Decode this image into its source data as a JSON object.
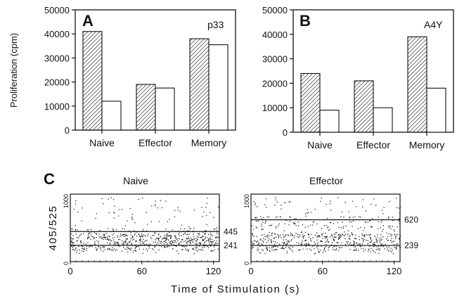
{
  "chart_data": [
    {
      "panel": "A",
      "type": "bar",
      "tag": "p33",
      "ylabel": "Proliferation (cpm)",
      "ylim": [
        0,
        50000
      ],
      "yticks": [
        "0",
        "10000",
        "20000",
        "30000",
        "40000",
        "50000"
      ],
      "categories": [
        "Naive",
        "Effector",
        "Memory"
      ],
      "series": [
        {
          "pattern": "hatched",
          "values": [
            41000,
            19000,
            38000
          ]
        },
        {
          "pattern": "open",
          "values": [
            12000,
            17500,
            35500
          ]
        }
      ]
    },
    {
      "panel": "B",
      "type": "bar",
      "tag": "A4Y",
      "ylim": [
        0,
        50000
      ],
      "yticks": [
        "0",
        "10000",
        "20000",
        "30000",
        "40000",
        "50000"
      ],
      "categories": [
        "Naive",
        "Effector",
        "Memory"
      ],
      "series": [
        {
          "pattern": "hatched",
          "values": [
            24000,
            21000,
            39000
          ]
        },
        {
          "pattern": "open",
          "values": [
            9000,
            10000,
            18000
          ]
        }
      ]
    },
    {
      "panel": "C",
      "type": "scatter",
      "ylabel": "405/525",
      "xlabel": "Time of Stimulation (s)",
      "xlim": [
        0,
        125
      ],
      "ylim": [
        0,
        1000
      ],
      "xticks": [
        "0",
        "60",
        "120"
      ],
      "yticks": [
        "0",
        "1000"
      ],
      "plots": [
        {
          "title": "Naive",
          "ref_lines": [
            445,
            241
          ],
          "ref_labels": [
            "445",
            "241"
          ],
          "spread": [
            120,
            1000
          ]
        },
        {
          "title": "Effector",
          "ref_lines": [
            620,
            239
          ],
          "ref_labels": [
            "620",
            "239"
          ],
          "spread": [
            120,
            1000
          ]
        }
      ]
    }
  ],
  "colors": {
    "ink": "#111111",
    "background": "#ffffff"
  }
}
